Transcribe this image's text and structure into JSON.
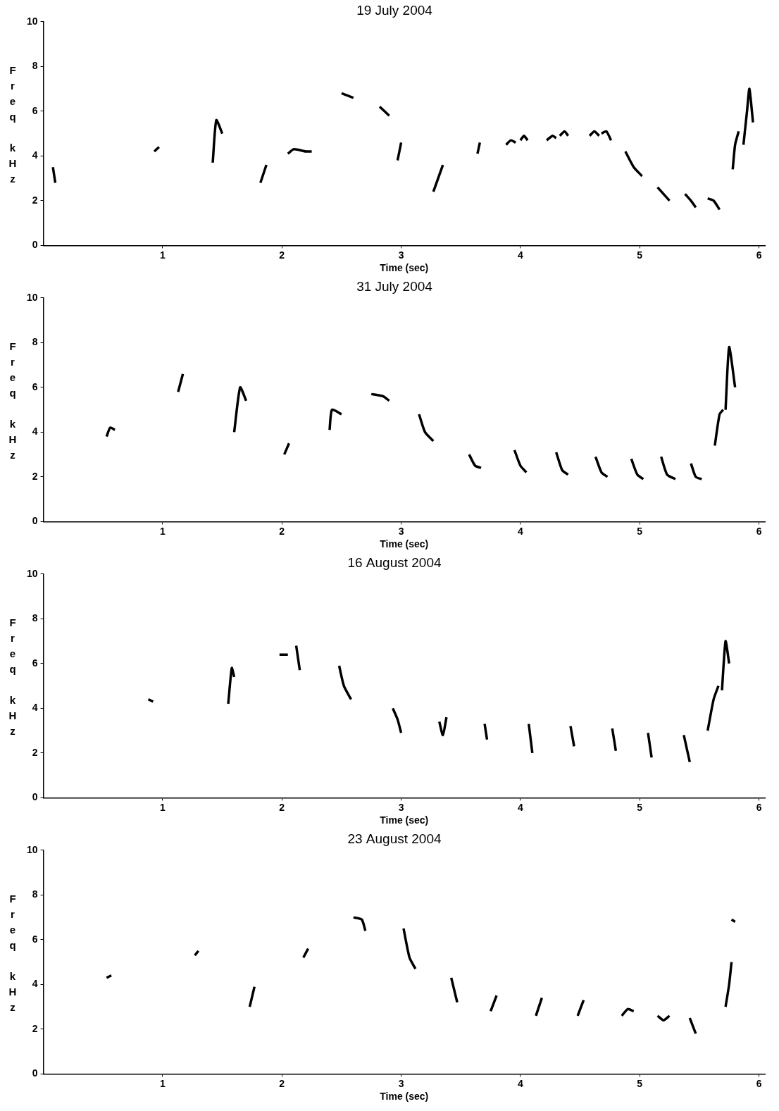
{
  "chart_data": [
    {
      "type": "line",
      "title": "19 July 2004",
      "xlabel": "Time (sec)",
      "ylabel": "Freq kHz",
      "xlim": [
        0,
        6.05
      ],
      "xticks": [
        1,
        2,
        3,
        4,
        5,
        6
      ],
      "ylim": [
        0,
        10
      ],
      "yticks": [
        0,
        2,
        4,
        6,
        8,
        10
      ],
      "grid": false,
      "color": "#000000",
      "line_style": "solid",
      "series": [
        {
          "x": [
            0.08,
            0.1
          ],
          "values": [
            3.5,
            2.8
          ]
        },
        {
          "x": [
            0.93,
            0.97
          ],
          "values": [
            4.2,
            4.4
          ]
        },
        {
          "x": [
            1.42,
            1.45,
            1.5
          ],
          "values": [
            3.7,
            5.6,
            5.0
          ]
        },
        {
          "x": [
            1.82,
            1.87
          ],
          "values": [
            2.8,
            3.6
          ]
        },
        {
          "x": [
            2.05,
            2.1,
            2.2,
            2.25
          ],
          "values": [
            4.1,
            4.3,
            4.2,
            4.2
          ]
        },
        {
          "x": [
            2.5,
            2.6
          ],
          "values": [
            6.8,
            6.6
          ]
        },
        {
          "x": [
            2.82,
            2.9
          ],
          "values": [
            6.2,
            5.8
          ]
        },
        {
          "x": [
            2.97,
            3.0
          ],
          "values": [
            3.8,
            4.6
          ]
        },
        {
          "x": [
            3.27,
            3.35
          ],
          "values": [
            2.4,
            3.6
          ]
        },
        {
          "x": [
            3.64,
            3.66
          ],
          "values": [
            4.1,
            4.6
          ]
        },
        {
          "x": [
            3.88,
            3.92,
            3.96
          ],
          "values": [
            4.5,
            4.7,
            4.6
          ]
        },
        {
          "x": [
            4.0,
            4.03,
            4.06
          ],
          "values": [
            4.7,
            4.9,
            4.7
          ]
        },
        {
          "x": [
            4.22,
            4.27,
            4.3
          ],
          "values": [
            4.7,
            4.9,
            4.8
          ]
        },
        {
          "x": [
            4.33,
            4.37,
            4.4
          ],
          "values": [
            4.9,
            5.1,
            4.9
          ]
        },
        {
          "x": [
            4.58,
            4.62,
            4.66
          ],
          "values": [
            4.9,
            5.1,
            4.9
          ]
        },
        {
          "x": [
            4.68,
            4.72,
            4.76
          ],
          "values": [
            5.0,
            5.1,
            4.7
          ]
        },
        {
          "x": [
            4.88,
            4.95,
            5.02
          ],
          "values": [
            4.2,
            3.5,
            3.1
          ]
        },
        {
          "x": [
            5.15,
            5.2,
            5.25
          ],
          "values": [
            2.6,
            2.3,
            2.0
          ]
        },
        {
          "x": [
            5.38,
            5.43,
            5.47
          ],
          "values": [
            2.3,
            2.0,
            1.7
          ]
        },
        {
          "x": [
            5.57,
            5.62,
            5.67
          ],
          "values": [
            2.1,
            2.0,
            1.6
          ]
        },
        {
          "x": [
            5.78,
            5.8,
            5.83
          ],
          "values": [
            3.4,
            4.5,
            5.1
          ]
        },
        {
          "x": [
            5.87,
            5.9,
            5.92,
            5.95
          ],
          "values": [
            4.5,
            6.0,
            7.0,
            5.5
          ]
        }
      ]
    },
    {
      "type": "line",
      "title": "31 July 2004",
      "xlabel": "Time (sec)",
      "ylabel": "Freq kHz",
      "xlim": [
        0,
        6.05
      ],
      "xticks": [
        1,
        2,
        3,
        4,
        5,
        6
      ],
      "ylim": [
        0,
        10
      ],
      "yticks": [
        0,
        2,
        4,
        6,
        8,
        10
      ],
      "grid": false,
      "color": "#000000",
      "line_style": "solid",
      "series": [
        {
          "x": [
            0.53,
            0.56,
            0.6
          ],
          "values": [
            3.8,
            4.2,
            4.1
          ]
        },
        {
          "x": [
            1.13,
            1.17
          ],
          "values": [
            5.8,
            6.6
          ]
        },
        {
          "x": [
            1.6,
            1.65,
            1.7
          ],
          "values": [
            4.0,
            6.0,
            5.4
          ]
        },
        {
          "x": [
            2.02,
            2.06
          ],
          "values": [
            3.0,
            3.5
          ]
        },
        {
          "x": [
            2.4,
            2.42,
            2.5
          ],
          "values": [
            4.1,
            5.0,
            4.8
          ]
        },
        {
          "x": [
            2.75,
            2.85,
            2.9
          ],
          "values": [
            5.7,
            5.6,
            5.4
          ]
        },
        {
          "x": [
            3.15,
            3.2,
            3.27
          ],
          "values": [
            4.8,
            4.0,
            3.6
          ]
        },
        {
          "x": [
            3.57,
            3.62,
            3.67
          ],
          "values": [
            3.0,
            2.5,
            2.4
          ]
        },
        {
          "x": [
            3.95,
            4.0,
            4.05
          ],
          "values": [
            3.2,
            2.5,
            2.2
          ]
        },
        {
          "x": [
            4.3,
            4.35,
            4.4
          ],
          "values": [
            3.1,
            2.3,
            2.1
          ]
        },
        {
          "x": [
            4.63,
            4.68,
            4.73
          ],
          "values": [
            2.9,
            2.2,
            2.0
          ]
        },
        {
          "x": [
            4.93,
            4.98,
            5.03
          ],
          "values": [
            2.8,
            2.1,
            1.9
          ]
        },
        {
          "x": [
            5.18,
            5.23,
            5.3
          ],
          "values": [
            2.9,
            2.1,
            1.9
          ]
        },
        {
          "x": [
            5.43,
            5.47,
            5.52
          ],
          "values": [
            2.6,
            2.0,
            1.9
          ]
        },
        {
          "x": [
            5.63,
            5.67,
            5.7
          ],
          "values": [
            3.4,
            4.8,
            5.0
          ]
        },
        {
          "x": [
            5.72,
            5.75,
            5.8
          ],
          "values": [
            5.0,
            7.8,
            6.0
          ]
        }
      ]
    },
    {
      "type": "line",
      "title": "16 August 2004",
      "xlabel": "Time (sec)",
      "ylabel": "Freq kHz",
      "xlim": [
        0,
        6.05
      ],
      "xticks": [
        1,
        2,
        3,
        4,
        5,
        6
      ],
      "ylim": [
        0,
        10
      ],
      "yticks": [
        0,
        2,
        4,
        6,
        8,
        10
      ],
      "grid": false,
      "color": "#000000",
      "line_style": "solid",
      "series": [
        {
          "x": [
            0.88,
            0.92
          ],
          "values": [
            4.4,
            4.3
          ]
        },
        {
          "x": [
            1.55,
            1.58,
            1.6
          ],
          "values": [
            4.2,
            5.8,
            5.4
          ]
        },
        {
          "x": [
            1.98,
            2.05
          ],
          "values": [
            6.4,
            6.4
          ]
        },
        {
          "x": [
            2.12,
            2.15
          ],
          "values": [
            6.8,
            5.7
          ]
        },
        {
          "x": [
            2.48,
            2.52,
            2.58
          ],
          "values": [
            5.9,
            5.0,
            4.4
          ]
        },
        {
          "x": [
            2.93,
            2.97,
            3.0
          ],
          "values": [
            4.0,
            3.5,
            2.9
          ]
        },
        {
          "x": [
            3.32,
            3.35,
            3.38
          ],
          "values": [
            3.4,
            2.8,
            3.6
          ]
        },
        {
          "x": [
            3.7,
            3.72
          ],
          "values": [
            3.3,
            2.6
          ]
        },
        {
          "x": [
            4.07,
            4.1
          ],
          "values": [
            3.3,
            2.0
          ]
        },
        {
          "x": [
            4.42,
            4.45
          ],
          "values": [
            3.2,
            2.3
          ]
        },
        {
          "x": [
            4.77,
            4.8
          ],
          "values": [
            3.1,
            2.1
          ]
        },
        {
          "x": [
            5.07,
            5.1
          ],
          "values": [
            2.9,
            1.8
          ]
        },
        {
          "x": [
            5.37,
            5.42
          ],
          "values": [
            2.8,
            1.6
          ]
        },
        {
          "x": [
            5.57,
            5.62,
            5.66
          ],
          "values": [
            3.0,
            4.4,
            5.0
          ]
        },
        {
          "x": [
            5.69,
            5.72,
            5.75
          ],
          "values": [
            4.8,
            7.0,
            6.0
          ]
        }
      ]
    },
    {
      "type": "line",
      "title": "23 August 2004",
      "xlabel": "Time (sec)",
      "ylabel": "Freq kHz",
      "xlim": [
        0,
        6.05
      ],
      "xticks": [
        1,
        2,
        3,
        4,
        5,
        6
      ],
      "ylim": [
        0,
        10
      ],
      "yticks": [
        0,
        2,
        4,
        6,
        8,
        10
      ],
      "grid": false,
      "color": "#000000",
      "line_style": "solid",
      "series": [
        {
          "x": [
            0.53,
            0.57
          ],
          "values": [
            4.3,
            4.4
          ]
        },
        {
          "x": [
            1.27,
            1.3
          ],
          "values": [
            5.3,
            5.5
          ]
        },
        {
          "x": [
            1.73,
            1.77
          ],
          "values": [
            3.0,
            3.9
          ]
        },
        {
          "x": [
            2.18,
            2.22
          ],
          "values": [
            5.2,
            5.6
          ]
        },
        {
          "x": [
            2.6,
            2.67,
            2.7
          ],
          "values": [
            7.0,
            6.9,
            6.4
          ]
        },
        {
          "x": [
            3.02,
            3.07,
            3.12
          ],
          "values": [
            6.5,
            5.2,
            4.7
          ]
        },
        {
          "x": [
            3.42,
            3.47
          ],
          "values": [
            4.3,
            3.2
          ]
        },
        {
          "x": [
            3.75,
            3.8
          ],
          "values": [
            2.8,
            3.5
          ]
        },
        {
          "x": [
            4.13,
            4.18
          ],
          "values": [
            2.6,
            3.4
          ]
        },
        {
          "x": [
            4.48,
            4.53
          ],
          "values": [
            2.6,
            3.3
          ]
        },
        {
          "x": [
            4.85,
            4.9,
            4.95
          ],
          "values": [
            2.6,
            2.9,
            2.8
          ]
        },
        {
          "x": [
            5.15,
            5.2,
            5.25
          ],
          "values": [
            2.6,
            2.4,
            2.6
          ]
        },
        {
          "x": [
            5.42,
            5.47
          ],
          "values": [
            2.5,
            1.8
          ]
        },
        {
          "x": [
            5.72,
            5.75,
            5.77
          ],
          "values": [
            3.0,
            4.0,
            5.0
          ]
        },
        {
          "x": [
            5.77,
            5.8
          ],
          "values": [
            6.9,
            6.8
          ]
        }
      ]
    }
  ]
}
